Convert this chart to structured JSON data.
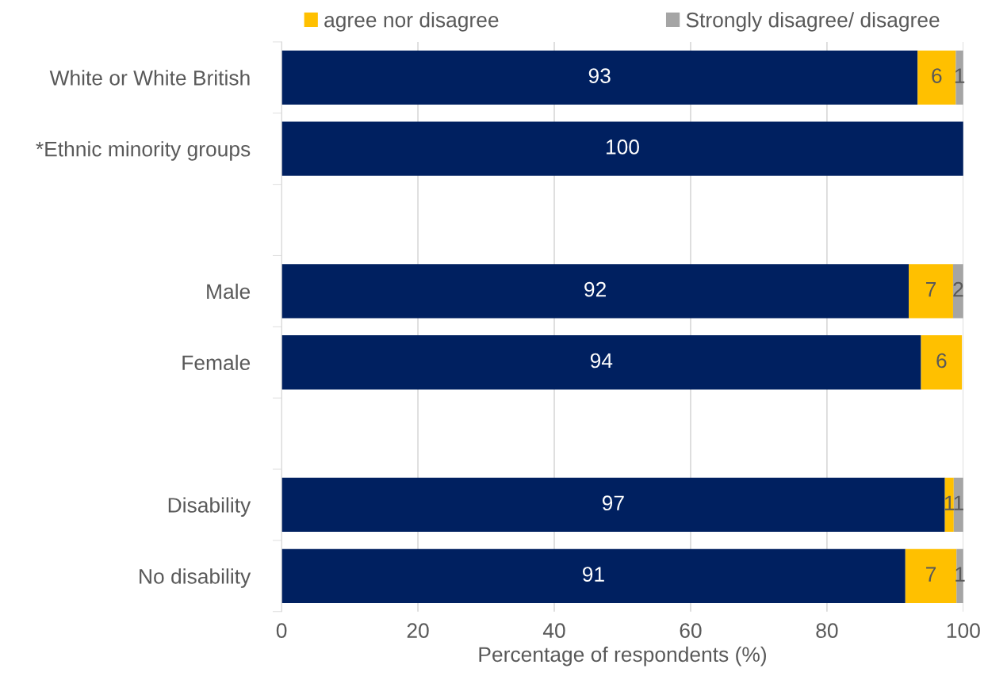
{
  "chart_data": {
    "type": "bar",
    "orientation": "horizontal",
    "stacked": true,
    "xlabel": "Percentage of respondents (%)",
    "categories": [
      "White or White British",
      "*Ethnic minority groups",
      null,
      "Male",
      "Female",
      null,
      "Disability",
      "No disability"
    ],
    "series": [
      {
        "color": "#002060",
        "values": [
          93.3,
          100,
          null,
          92,
          93.8,
          null,
          97.3,
          91.5
        ],
        "value_labels": [
          "93",
          "100",
          null,
          "92",
          "94",
          null,
          "97",
          "91"
        ]
      },
      {
        "name": "agree nor disagree",
        "color": "#ffc000",
        "values": [
          5.6,
          null,
          null,
          6.5,
          6,
          null,
          1.3,
          7.5
        ],
        "value_labels": [
          "6",
          null,
          null,
          "7",
          "6",
          null,
          "1",
          "7"
        ]
      },
      {
        "name": "Strongly disagree/ disagree",
        "color": "#a5a5a5",
        "values": [
          1.1,
          null,
          null,
          1.5,
          null,
          null,
          1.4,
          1
        ],
        "value_labels": [
          "1",
          null,
          null,
          "2",
          null,
          null,
          "1",
          "1"
        ]
      }
    ],
    "xlim": [
      0,
      100
    ],
    "xticks": [
      0,
      20,
      40,
      60,
      80,
      100
    ],
    "grid": "x",
    "legend": "top"
  }
}
